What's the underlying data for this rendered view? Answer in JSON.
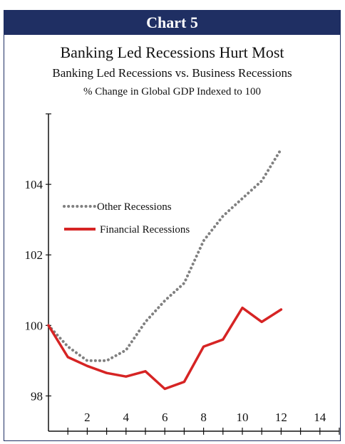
{
  "header": {
    "label": "Chart 5"
  },
  "chart_data": {
    "type": "line",
    "title": "Banking Led Recessions Hurt Most",
    "subtitle": "Banking Led Recessions vs. Business Recessions",
    "subtitle2": "% Change in Global GDP Indexed to 100",
    "xlim": [
      0,
      15
    ],
    "ylim": [
      97,
      106
    ],
    "x_ticks": [
      2,
      4,
      6,
      8,
      10,
      12,
      14
    ],
    "y_ticks": [
      98,
      100,
      102,
      104
    ],
    "grid": false,
    "legend": "upper-left",
    "series": [
      {
        "name": "Other Recessions",
        "color": "#808080",
        "style": "dotted",
        "x": [
          0,
          1,
          2,
          3,
          4,
          5,
          6,
          7,
          8,
          9,
          10,
          11,
          12
        ],
        "y": [
          100.0,
          99.4,
          99.0,
          99.0,
          99.3,
          100.1,
          100.7,
          101.2,
          102.4,
          103.1,
          103.6,
          104.1,
          105.0
        ]
      },
      {
        "name": "Financial Recessions",
        "color": "#d62424",
        "style": "solid",
        "x": [
          0,
          1,
          2,
          3,
          4,
          5,
          6,
          7,
          8,
          9,
          10,
          11,
          12
        ],
        "y": [
          100.0,
          99.1,
          98.85,
          98.65,
          98.55,
          98.7,
          98.2,
          98.4,
          99.4,
          99.6,
          100.5,
          100.1,
          100.45
        ]
      }
    ]
  }
}
